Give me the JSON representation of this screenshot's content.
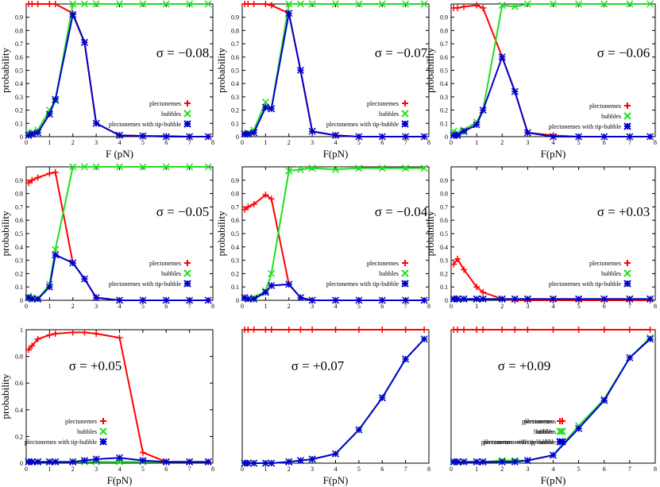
{
  "chart_data": [
    {
      "type": "line",
      "annotation": "σ = −0.08",
      "xlabel": "F (pN)",
      "ylabel": "probability",
      "x": [
        0.1,
        0.25,
        0.5,
        1,
        1.25,
        2,
        2.5,
        3,
        4,
        5,
        6,
        7,
        7.8
      ],
      "xlim": [
        0,
        8
      ],
      "ylim": [
        0,
        1
      ],
      "xticks": [
        0,
        1,
        2,
        3,
        4,
        5,
        6,
        7,
        8
      ],
      "yticks": [
        0,
        0.1,
        0.2,
        0.3,
        0.4,
        0.5,
        0.6,
        0.7,
        0.8,
        0.9
      ],
      "series": [
        {
          "name": "plectonemes",
          "color": "#ff0000",
          "marker": "plus",
          "values": [
            1,
            1,
            1,
            1,
            1,
            0.93,
            0.71,
            0.1,
            0.01,
            0.005,
            0.005,
            0,
            0
          ]
        },
        {
          "name": "bubbles",
          "color": "#22dd22",
          "marker": "cross",
          "values": [
            0.03,
            0.03,
            0.05,
            0.2,
            0.27,
            1,
            1,
            1,
            1,
            1,
            1,
            1,
            1
          ]
        },
        {
          "name": "plectonemes with tip-bubble",
          "color": "#0000cc",
          "marker": "star",
          "values": [
            0.01,
            0.02,
            0.03,
            0.17,
            0.28,
            0.92,
            0.71,
            0.1,
            0.01,
            0.005,
            0,
            0,
            0
          ]
        }
      ]
    },
    {
      "type": "line",
      "annotation": "σ = −0.07",
      "xlabel": "F(pN)",
      "ylabel": "probability",
      "x": [
        0.1,
        0.25,
        0.5,
        1,
        1.25,
        2,
        2.5,
        3,
        4,
        5,
        6,
        7,
        7.8
      ],
      "xlim": [
        0,
        8
      ],
      "ylim": [
        0,
        1
      ],
      "xticks": [
        0,
        1,
        2,
        3,
        4,
        5,
        6,
        7,
        8
      ],
      "yticks": [
        0,
        0.1,
        0.2,
        0.3,
        0.4,
        0.5,
        0.6,
        0.7,
        0.8,
        0.9
      ],
      "series": [
        {
          "name": "plectonemes",
          "color": "#ff0000",
          "marker": "plus",
          "values": [
            1,
            1,
            1,
            1,
            0.99,
            0.93,
            0.5,
            0.04,
            0.01,
            0,
            0,
            0,
            0
          ]
        },
        {
          "name": "bubbles",
          "color": "#22dd22",
          "marker": "cross",
          "values": [
            0.02,
            0.03,
            0.05,
            0.26,
            0.21,
            1,
            1,
            1,
            1,
            1,
            1,
            1,
            1
          ]
        },
        {
          "name": "plectonemes with tip-bubble",
          "color": "#0000cc",
          "marker": "star",
          "values": [
            0.02,
            0.02,
            0.03,
            0.22,
            0.21,
            0.93,
            0.5,
            0.04,
            0.01,
            0,
            0,
            0,
            0
          ]
        }
      ]
    },
    {
      "type": "line",
      "annotation": "σ = −0.06",
      "xlabel": "F(pN)",
      "ylabel": "probability",
      "x": [
        0.1,
        0.25,
        0.5,
        1,
        1.25,
        2,
        2.5,
        3,
        4,
        5,
        6,
        7,
        7.8
      ],
      "xlim": [
        0,
        8
      ],
      "ylim": [
        0,
        1
      ],
      "xticks": [
        0,
        1,
        2,
        3,
        4,
        5,
        6,
        7,
        8
      ],
      "yticks": [
        0,
        0.1,
        0.2,
        0.3,
        0.4,
        0.5,
        0.6,
        0.7,
        0.8,
        0.9
      ],
      "series": [
        {
          "name": "plectonemes",
          "color": "#ff0000",
          "marker": "plus",
          "values": [
            0.97,
            0.97,
            0.98,
            0.99,
            0.97,
            0.6,
            0.34,
            0.03,
            0.01,
            0,
            0,
            0,
            0
          ]
        },
        {
          "name": "bubbles",
          "color": "#22dd22",
          "marker": "cross",
          "values": [
            0.04,
            0.03,
            0.05,
            0.11,
            0.2,
            0.99,
            0.98,
            1,
            1,
            1,
            1,
            1,
            1
          ]
        },
        {
          "name": "plectonemes with tip-bubble",
          "color": "#0000cc",
          "marker": "star",
          "values": [
            0.01,
            0.01,
            0.04,
            0.09,
            0.2,
            0.6,
            0.34,
            0.03,
            0,
            0,
            0,
            0,
            0
          ]
        }
      ]
    },
    {
      "type": "line",
      "annotation": "σ = −0.05",
      "ylabel": "probability",
      "x": [
        0.1,
        0.25,
        0.5,
        1,
        1.25,
        2,
        2.5,
        3,
        4,
        5,
        6,
        7,
        7.8
      ],
      "xlim": [
        0,
        8
      ],
      "ylim": [
        0,
        1
      ],
      "xticks": [
        0,
        1,
        2,
        3,
        4,
        5,
        6,
        7,
        8
      ],
      "yticks": [
        0,
        0.1,
        0.2,
        0.3,
        0.4,
        0.5,
        0.6,
        0.7,
        0.8,
        0.9
      ],
      "series": [
        {
          "name": "plectonemes",
          "color": "#ff0000",
          "marker": "plus",
          "values": [
            0.88,
            0.9,
            0.92,
            0.95,
            0.96,
            0.28,
            0.16,
            0.02,
            0,
            0,
            0,
            0,
            0
          ]
        },
        {
          "name": "bubbles",
          "color": "#22dd22",
          "marker": "cross",
          "values": [
            0.03,
            0.02,
            0.01,
            0.12,
            0.38,
            1,
            1,
            1,
            1,
            1,
            1,
            1,
            1
          ]
        },
        {
          "name": "plectonemes with tip-bubble",
          "color": "#0000cc",
          "marker": "star",
          "values": [
            0.02,
            0.01,
            0.01,
            0.1,
            0.34,
            0.28,
            0.16,
            0.02,
            0,
            0,
            0,
            0,
            0
          ]
        }
      ]
    },
    {
      "type": "line",
      "annotation": "σ = −0.04",
      "ylabel": "probability",
      "x": [
        0.1,
        0.25,
        0.5,
        1,
        1.25,
        2,
        2.5,
        3,
        4,
        5,
        6,
        7,
        7.8
      ],
      "xlim": [
        0,
        8
      ],
      "ylim": [
        0,
        1
      ],
      "xticks": [
        0,
        1,
        2,
        3,
        4,
        5,
        6,
        7,
        8
      ],
      "yticks": [
        0,
        0.1,
        0.2,
        0.3,
        0.4,
        0.5,
        0.6,
        0.7,
        0.8,
        0.9
      ],
      "series": [
        {
          "name": "plectonemes",
          "color": "#ff0000",
          "marker": "plus",
          "values": [
            0.68,
            0.7,
            0.72,
            0.79,
            0.76,
            0.12,
            0.02,
            0,
            0,
            0,
            0,
            0,
            0
          ]
        },
        {
          "name": "bubbles",
          "color": "#22dd22",
          "marker": "cross",
          "values": [
            0.02,
            0.01,
            0.02,
            0.07,
            0.2,
            0.97,
            0.98,
            0.99,
            0.98,
            0.99,
            0.99,
            0.99,
            0.99
          ]
        },
        {
          "name": "plectonemes with tip-bubble",
          "color": "#0000cc",
          "marker": "star",
          "values": [
            0.02,
            0.01,
            0.01,
            0.06,
            0.11,
            0.12,
            0.02,
            0,
            0,
            0,
            0,
            0,
            0
          ]
        }
      ]
    },
    {
      "type": "line",
      "annotation": "σ = +0.03",
      "ylabel": "probability",
      "x": [
        0.1,
        0.25,
        0.5,
        1,
        1.25,
        2,
        2.5,
        3,
        4,
        5,
        6,
        7,
        7.8
      ],
      "xlim": [
        0,
        8
      ],
      "ylim": [
        0,
        1
      ],
      "xticks": [
        0,
        1,
        2,
        3,
        4,
        5,
        6,
        7,
        8
      ],
      "yticks": [
        0,
        0.1,
        0.2,
        0.3,
        0.4,
        0.5,
        0.6,
        0.7,
        0.8,
        0.9
      ],
      "series": [
        {
          "name": "plectonemes",
          "color": "#ff0000",
          "marker": "plus",
          "values": [
            0.27,
            0.31,
            0.23,
            0.1,
            0.06,
            0.01,
            0,
            0,
            0,
            0,
            0,
            0,
            0
          ]
        },
        {
          "name": "bubbles",
          "color": "#22dd22",
          "marker": "cross",
          "values": [
            0.01,
            0.01,
            0.01,
            0.01,
            0.01,
            0.01,
            0.01,
            0.01,
            0.01,
            0.01,
            0.01,
            0.01,
            0.01
          ]
        },
        {
          "name": "plectonemes with tip-bubble",
          "color": "#0000cc",
          "marker": "star",
          "values": [
            0.01,
            0.01,
            0.01,
            0.01,
            0.01,
            0.01,
            0.01,
            0.01,
            0.01,
            0.01,
            0.01,
            0.01,
            0.01
          ]
        }
      ]
    },
    {
      "type": "line",
      "annotation": "σ = +0.05",
      "xlabel": "F(pN)",
      "ylabel": "probability",
      "x": [
        0.1,
        0.25,
        0.5,
        1,
        1.25,
        2,
        2.5,
        3,
        4,
        5,
        6,
        7,
        7.8
      ],
      "xlim": [
        0,
        8
      ],
      "ylim": [
        0,
        1
      ],
      "xticks": [
        0,
        1,
        2,
        3,
        4,
        5,
        6,
        7,
        8
      ],
      "yticks": [
        0,
        0.2,
        0.4,
        0.6,
        0.8,
        1
      ],
      "series": [
        {
          "name": "plectonemes",
          "color": "#ff0000",
          "marker": "plus",
          "values": [
            0.85,
            0.88,
            0.93,
            0.96,
            0.97,
            0.98,
            0.98,
            0.97,
            0.94,
            0.08,
            0.01,
            0.01,
            0.01
          ]
        },
        {
          "name": "bubbles",
          "color": "#22dd22",
          "marker": "cross",
          "values": [
            0.01,
            0.01,
            0.01,
            0.01,
            0.01,
            0.01,
            0.01,
            0.01,
            0.01,
            0.01,
            0.01,
            0.01,
            0.01
          ]
        },
        {
          "name": "plectonemes with tip-bubble",
          "color": "#0000cc",
          "marker": "star",
          "values": [
            0.01,
            0.01,
            0.01,
            0.01,
            0.01,
            0.01,
            0.02,
            0.03,
            0.04,
            0.02,
            0.01,
            0.01,
            0.01
          ]
        }
      ]
    },
    {
      "type": "line",
      "annotation": "σ = +0.07",
      "xlabel": "F(pN)",
      "x": [
        0.1,
        0.25,
        0.5,
        1,
        1.25,
        2,
        2.5,
        3,
        4,
        5,
        6,
        7,
        7.8
      ],
      "xlim": [
        0,
        8
      ],
      "ylim": [
        0,
        1
      ],
      "xticks": [
        0,
        1,
        2,
        3,
        4,
        5,
        6,
        7,
        8
      ],
      "series": [
        {
          "name": "plectonemes",
          "color": "#ff0000",
          "marker": "plus",
          "values": [
            1,
            1,
            1,
            1,
            1,
            1,
            1,
            1,
            1,
            1,
            1,
            1,
            1
          ]
        },
        {
          "name": "bubbles",
          "color": "#22dd22",
          "marker": "cross",
          "values": [
            0,
            0,
            0,
            0,
            0,
            0.01,
            0.02,
            0.03,
            0.07,
            0.25,
            0.49,
            0.78,
            0.93
          ]
        },
        {
          "name": "plectonemes with tip-bubble",
          "color": "#0000cc",
          "marker": "star",
          "values": [
            0,
            0,
            0,
            0,
            0,
            0.01,
            0.02,
            0.03,
            0.07,
            0.25,
            0.49,
            0.78,
            0.93
          ]
        }
      ]
    },
    {
      "type": "line",
      "annotation": "σ = +0.09",
      "xlabel": "F(pN)",
      "x": [
        0.1,
        0.25,
        0.5,
        1,
        1.25,
        2,
        2.5,
        3,
        4,
        5,
        6,
        7,
        7.8
      ],
      "xlim": [
        0,
        8
      ],
      "ylim": [
        0,
        1
      ],
      "xticks": [
        0,
        1,
        2,
        3,
        4,
        5,
        6,
        7,
        8
      ],
      "series": [
        {
          "name": "plectonemes",
          "color": "#ff0000",
          "marker": "plus",
          "values": [
            1,
            1,
            1,
            1,
            1,
            1,
            1,
            1,
            1,
            1,
            1,
            1,
            1
          ]
        },
        {
          "name": "bubbles",
          "color": "#22dd22",
          "marker": "cross",
          "values": [
            0.01,
            0.01,
            0.01,
            0.01,
            0.01,
            0.02,
            0.02,
            0.02,
            0.06,
            0.28,
            0.48,
            0.79,
            0.94
          ]
        },
        {
          "name": "plectonemes with tip-bubble",
          "color": "#0000cc",
          "marker": "star",
          "values": [
            0.01,
            0.01,
            0.01,
            0.01,
            0.01,
            0.01,
            0.01,
            0.02,
            0.06,
            0.26,
            0.47,
            0.79,
            0.93
          ]
        }
      ]
    }
  ]
}
